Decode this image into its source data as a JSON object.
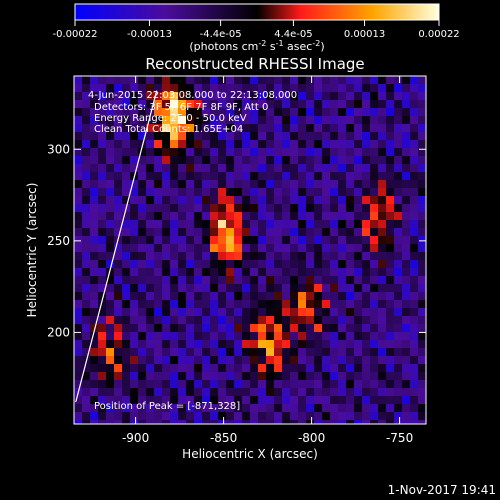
{
  "chart_data": {
    "type": "heatmap",
    "title": "Reconstructed RHESSI Image",
    "colorbar": {
      "ticks": [
        "-0.00022",
        "-0.00013",
        "-4.4e-05",
        "4.4e-05",
        "0.00013",
        "0.00022"
      ],
      "range": [
        -0.00022,
        0.00022
      ],
      "units_prefix": "(photons cm",
      "units_exp1": "-2",
      "units_mid": " s",
      "units_exp2": "-1",
      "units_mid2": " asec",
      "units_exp3": "-2",
      "units_suffix": ")",
      "colormap": [
        "#0000ff",
        "#5a0a9a",
        "#000000",
        "#ff1a1a",
        "#ffb000",
        "#ffffd8"
      ]
    },
    "xlabel": "Heliocentric X (arcsec)",
    "ylabel": "Heliocentric Y (arcsec)",
    "xlim": [
      -935,
      -735
    ],
    "ylim": [
      150,
      340
    ],
    "xticks": [
      -900,
      -850,
      -800,
      -750
    ],
    "yticks": [
      200,
      250,
      300
    ],
    "info_lines": [
      "4-Jun-2015 22:03:08.000 to 22:13:08.000",
      "Detectors: 3F 5F 6F 7F 8F 9F, Att 0",
      "Energy Range: 25.0 - 50.0 keV",
      "Clean   Total Counts: 1.65E+04"
    ],
    "peak_label": "Position of Peak = [-871,328]",
    "peak": [
      -871,
      328
    ],
    "bright_regions": [
      {
        "x": -878,
        "y": 318,
        "intensity": 0.00022
      },
      {
        "x": -848,
        "y": 255,
        "intensity": 0.00018
      },
      {
        "x": -825,
        "y": 195,
        "intensity": 0.00015
      },
      {
        "x": -802,
        "y": 215,
        "intensity": 0.00012
      },
      {
        "x": -762,
        "y": 262,
        "intensity": 0.00011
      },
      {
        "x": -915,
        "y": 190,
        "intensity": 0.0001
      }
    ],
    "limb_line": [
      [
        -934,
        162
      ],
      [
        -888,
        332
      ]
    ]
  },
  "footer": {
    "timestamp": "1-Nov-2017 19:41"
  }
}
